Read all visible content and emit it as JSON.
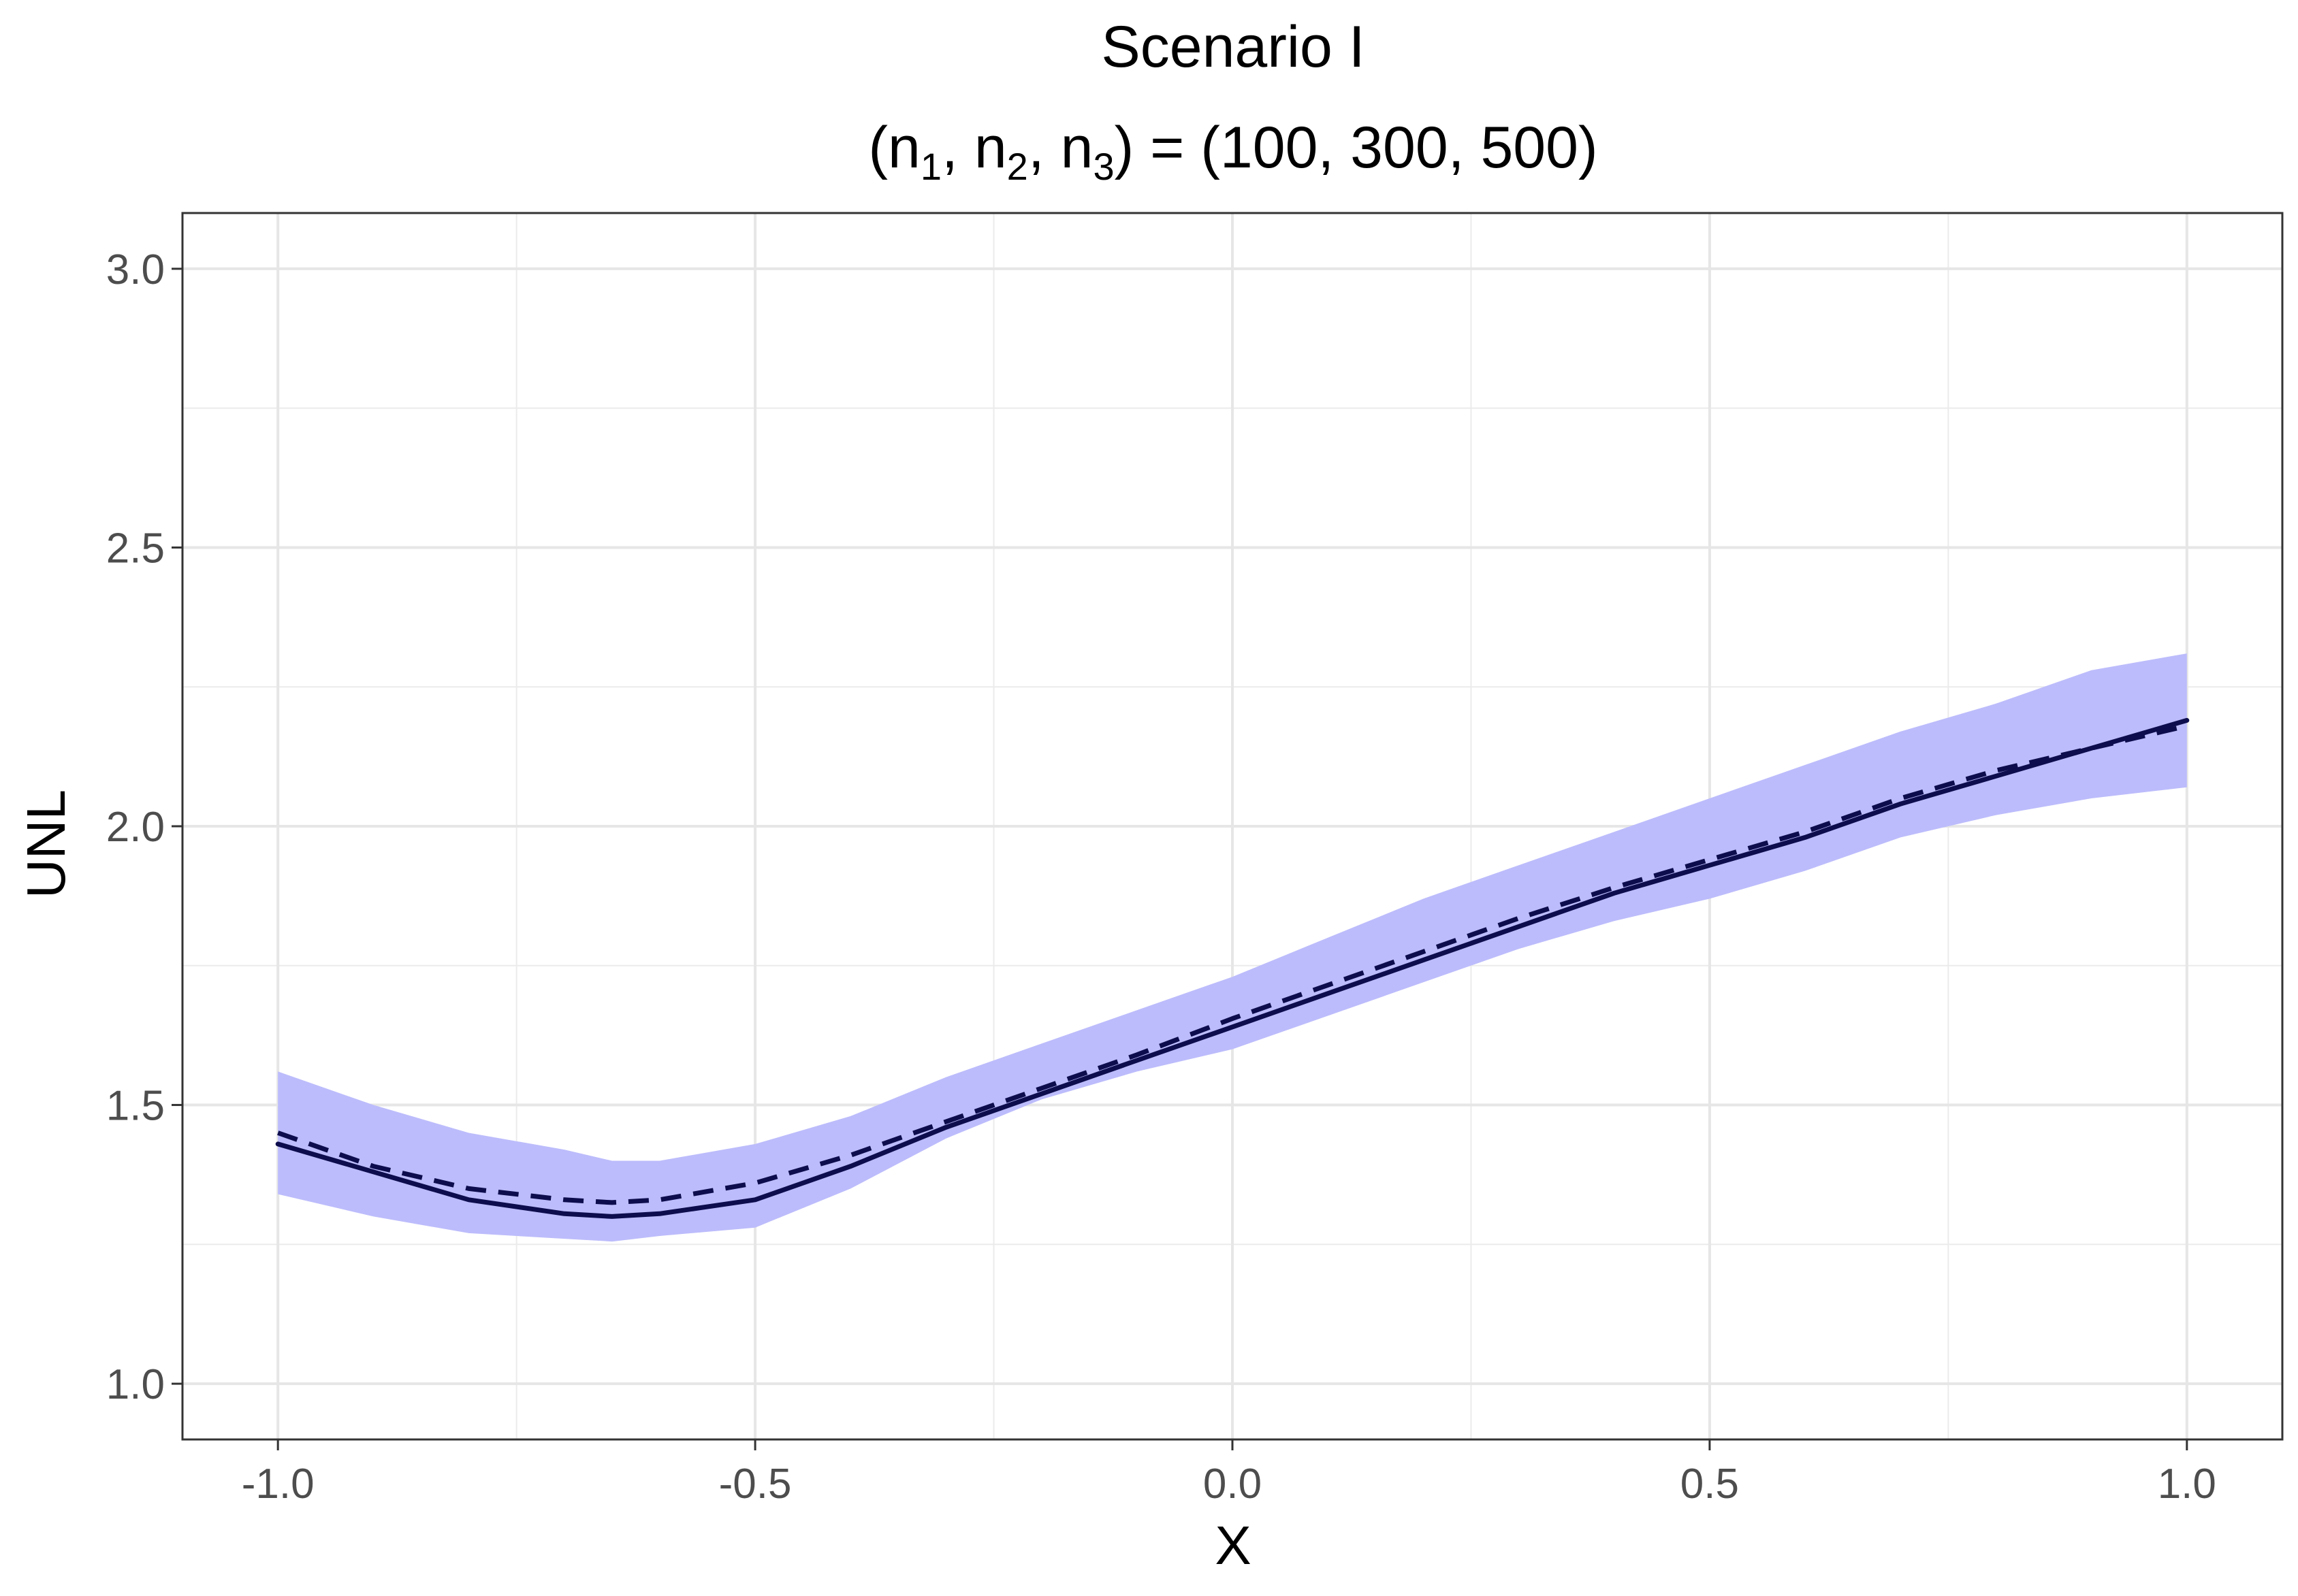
{
  "chart_data": {
    "type": "line",
    "title": "Scenario I",
    "subtitle": {
      "open": "(",
      "n": "n",
      "sub1": "1",
      "sub2": "2",
      "sub3": "3",
      "sep": ", ",
      "close_eq": ") = (100, 300, 500)"
    },
    "xlabel": "X",
    "ylabel": "UNL",
    "xlim": [
      -1.1,
      1.1
    ],
    "ylim": [
      0.9,
      3.1
    ],
    "x_ticks": [
      "-1.0",
      "-0.5",
      "0.0",
      "0.5",
      "1.0"
    ],
    "y_ticks": [
      "1.0",
      "1.5",
      "2.0",
      "2.5",
      "3.0"
    ],
    "grid": true,
    "band": {
      "color": "#bcbcfc",
      "x": [
        -1.0,
        -0.9,
        -0.8,
        -0.7,
        -0.65,
        -0.6,
        -0.5,
        -0.4,
        -0.3,
        -0.2,
        -0.1,
        0.0,
        0.1,
        0.2,
        0.3,
        0.4,
        0.5,
        0.6,
        0.7,
        0.8,
        0.9,
        1.0
      ],
      "lower": [
        1.34,
        1.3,
        1.27,
        1.26,
        1.255,
        1.265,
        1.28,
        1.35,
        1.44,
        1.51,
        1.56,
        1.6,
        1.66,
        1.72,
        1.78,
        1.83,
        1.87,
        1.92,
        1.98,
        2.02,
        2.05,
        2.07
      ],
      "upper": [
        1.56,
        1.5,
        1.45,
        1.42,
        1.4,
        1.4,
        1.43,
        1.48,
        1.55,
        1.61,
        1.67,
        1.73,
        1.8,
        1.87,
        1.93,
        1.99,
        2.05,
        2.11,
        2.17,
        2.22,
        2.28,
        2.31
      ]
    },
    "series": [
      {
        "style": "solid",
        "color": "#0d0d4d",
        "x": [
          -1.0,
          -0.9,
          -0.8,
          -0.7,
          -0.65,
          -0.6,
          -0.5,
          -0.4,
          -0.3,
          -0.2,
          -0.1,
          0.0,
          0.1,
          0.2,
          0.3,
          0.4,
          0.5,
          0.6,
          0.7,
          0.8,
          0.9,
          1.0
        ],
        "y": [
          1.43,
          1.38,
          1.33,
          1.305,
          1.3,
          1.305,
          1.33,
          1.39,
          1.46,
          1.52,
          1.58,
          1.64,
          1.7,
          1.76,
          1.82,
          1.88,
          1.93,
          1.98,
          2.04,
          2.09,
          2.14,
          2.19
        ]
      },
      {
        "style": "dashed",
        "color": "#0d0d4d",
        "x": [
          -1.0,
          -0.9,
          -0.8,
          -0.7,
          -0.65,
          -0.6,
          -0.5,
          -0.4,
          -0.3,
          -0.2,
          -0.1,
          0.0,
          0.1,
          0.2,
          0.3,
          0.4,
          0.5,
          0.6,
          0.7,
          0.8,
          0.9,
          1.0
        ],
        "y": [
          1.45,
          1.39,
          1.35,
          1.33,
          1.325,
          1.33,
          1.36,
          1.41,
          1.47,
          1.53,
          1.59,
          1.655,
          1.715,
          1.775,
          1.835,
          1.89,
          1.94,
          1.99,
          2.05,
          2.1,
          2.14,
          2.18
        ]
      }
    ]
  }
}
